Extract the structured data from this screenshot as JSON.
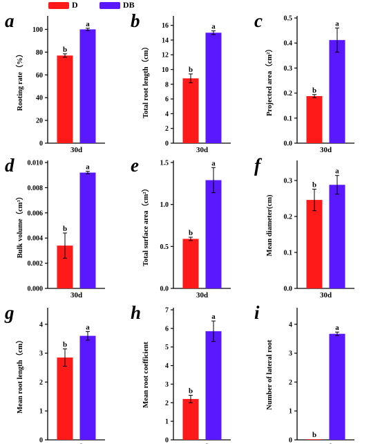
{
  "legend": {
    "items": [
      {
        "label": "D",
        "color": "#ff1a1a"
      },
      {
        "label": "DB",
        "color": "#5a18ff"
      }
    ]
  },
  "colors": {
    "D": "#ff1a1a",
    "DB": "#5a18ff",
    "axis": "#000000"
  },
  "chart_data": [
    {
      "type": "bar",
      "panel": "a",
      "categories": [
        "30d"
      ],
      "xlabel": "30d",
      "ylabel": "Rooting rate（%）",
      "ylim": [
        0,
        110
      ],
      "yticks": [
        0,
        20,
        40,
        60,
        80,
        100
      ],
      "tick_labels": [
        "0",
        "20",
        "40",
        "60",
        "80",
        "100"
      ],
      "series": [
        {
          "name": "D",
          "values": [
            77
          ],
          "error": [
            1.5
          ],
          "sig": "b"
        },
        {
          "name": "DB",
          "values": [
            100
          ],
          "error": [
            1
          ],
          "sig": "a"
        }
      ]
    },
    {
      "type": "bar",
      "panel": "b",
      "categories": [
        "30d"
      ],
      "xlabel": "30d",
      "ylabel": "Total root length（cm）",
      "ylim": [
        0,
        17
      ],
      "yticks": [
        0,
        2,
        4,
        6,
        8,
        10,
        12,
        14,
        16
      ],
      "tick_labels": [
        "0",
        "2",
        "4",
        "6",
        "8",
        "10",
        "12",
        "14",
        "16"
      ],
      "series": [
        {
          "name": "D",
          "values": [
            8.8
          ],
          "error": [
            0.6
          ],
          "sig": "b"
        },
        {
          "name": "DB",
          "values": [
            15.0
          ],
          "error": [
            0.25
          ],
          "sig": "a"
        }
      ]
    },
    {
      "type": "bar",
      "panel": "c",
      "categories": [
        "30d"
      ],
      "xlabel": "30d",
      "ylabel": "Projected area（cm²）",
      "ylim": [
        0,
        0.5
      ],
      "yticks": [
        0,
        0.1,
        0.2,
        0.3,
        0.4,
        0.5
      ],
      "tick_labels": [
        "0.0",
        "0.1",
        "0.2",
        "0.3",
        "0.4",
        "0.5"
      ],
      "series": [
        {
          "name": "D",
          "values": [
            0.188
          ],
          "error": [
            0.006
          ],
          "sig": "b"
        },
        {
          "name": "DB",
          "values": [
            0.412
          ],
          "error": [
            0.048
          ],
          "sig": "a"
        }
      ]
    },
    {
      "type": "bar",
      "panel": "d",
      "categories": [
        "30d"
      ],
      "xlabel": "30d",
      "ylabel": "Bulk volume（cm³）",
      "ylim": [
        0,
        0.01
      ],
      "yticks": [
        0,
        0.002,
        0.004,
        0.006,
        0.008,
        0.01
      ],
      "tick_labels": [
        "0.000",
        "0.002",
        "0.004",
        "0.006",
        "0.008",
        "0.010"
      ],
      "series": [
        {
          "name": "D",
          "values": [
            0.0034
          ],
          "error": [
            0.001
          ],
          "sig": "b"
        },
        {
          "name": "DB",
          "values": [
            0.0092
          ],
          "error": [
            0.0001
          ],
          "sig": "a"
        }
      ]
    },
    {
      "type": "bar",
      "panel": "e",
      "categories": [
        "30d"
      ],
      "xlabel": "30d",
      "ylabel": "Total surface area（cm²）",
      "ylim": [
        0,
        1.5
      ],
      "yticks": [
        0,
        0.5,
        1.0,
        1.5
      ],
      "tick_labels": [
        "0.0",
        "0.5",
        "1.0",
        "1.5"
      ],
      "series": [
        {
          "name": "D",
          "values": [
            0.59
          ],
          "error": [
            0.02
          ],
          "sig": "b"
        },
        {
          "name": "DB",
          "values": [
            1.29
          ],
          "error": [
            0.15
          ],
          "sig": "a"
        }
      ]
    },
    {
      "type": "bar",
      "panel": "f",
      "categories": [
        "30d"
      ],
      "xlabel": "30d",
      "ylabel": "Mean diameter(cm)",
      "ylim": [
        0,
        0.35
      ],
      "yticks": [
        0,
        0.1,
        0.2,
        0.3
      ],
      "tick_labels": [
        "0.0",
        "0.1",
        "0.2",
        "0.3"
      ],
      "series": [
        {
          "name": "D",
          "values": [
            0.246
          ],
          "error": [
            0.03
          ],
          "sig": "b"
        },
        {
          "name": "DB",
          "values": [
            0.288
          ],
          "error": [
            0.026
          ],
          "sig": "a"
        }
      ]
    },
    {
      "type": "bar",
      "panel": "g",
      "categories": [
        "30d"
      ],
      "xlabel": "30d",
      "ylabel": "Mean root length（cm）",
      "ylim": [
        0,
        4.5
      ],
      "yticks": [
        0,
        1,
        2,
        3,
        4
      ],
      "tick_labels": [
        "0",
        "1",
        "2",
        "3",
        "4"
      ],
      "series": [
        {
          "name": "D",
          "values": [
            2.85
          ],
          "error": [
            0.3
          ],
          "sig": "b"
        },
        {
          "name": "DB",
          "values": [
            3.6
          ],
          "error": [
            0.15
          ],
          "sig": "a"
        }
      ]
    },
    {
      "type": "bar",
      "panel": "h",
      "categories": [
        "30d"
      ],
      "xlabel": "30d",
      "ylabel": "Mean root coefficient",
      "ylim": [
        0,
        7
      ],
      "yticks": [
        0,
        1,
        2,
        3,
        4,
        5,
        6,
        7
      ],
      "tick_labels": [
        "0",
        "1",
        "2",
        "3",
        "4",
        "5",
        "6",
        "7"
      ],
      "series": [
        {
          "name": "D",
          "values": [
            2.2
          ],
          "error": [
            0.2
          ],
          "sig": "b"
        },
        {
          "name": "DB",
          "values": [
            5.85
          ],
          "error": [
            0.55
          ],
          "sig": "a"
        }
      ]
    },
    {
      "type": "bar",
      "panel": "i",
      "categories": [
        "30d"
      ],
      "xlabel": "30d",
      "ylabel": "Number of lateral root",
      "ylim": [
        0,
        4.5
      ],
      "yticks": [
        0,
        1,
        2,
        3,
        4
      ],
      "tick_labels": [
        "0",
        "1",
        "2",
        "3",
        "4"
      ],
      "series": [
        {
          "name": "D",
          "values": [
            0.02
          ],
          "error": [
            0
          ],
          "sig": "b"
        },
        {
          "name": "DB",
          "values": [
            3.67
          ],
          "error": [
            0.06
          ],
          "sig": "a"
        }
      ]
    }
  ]
}
